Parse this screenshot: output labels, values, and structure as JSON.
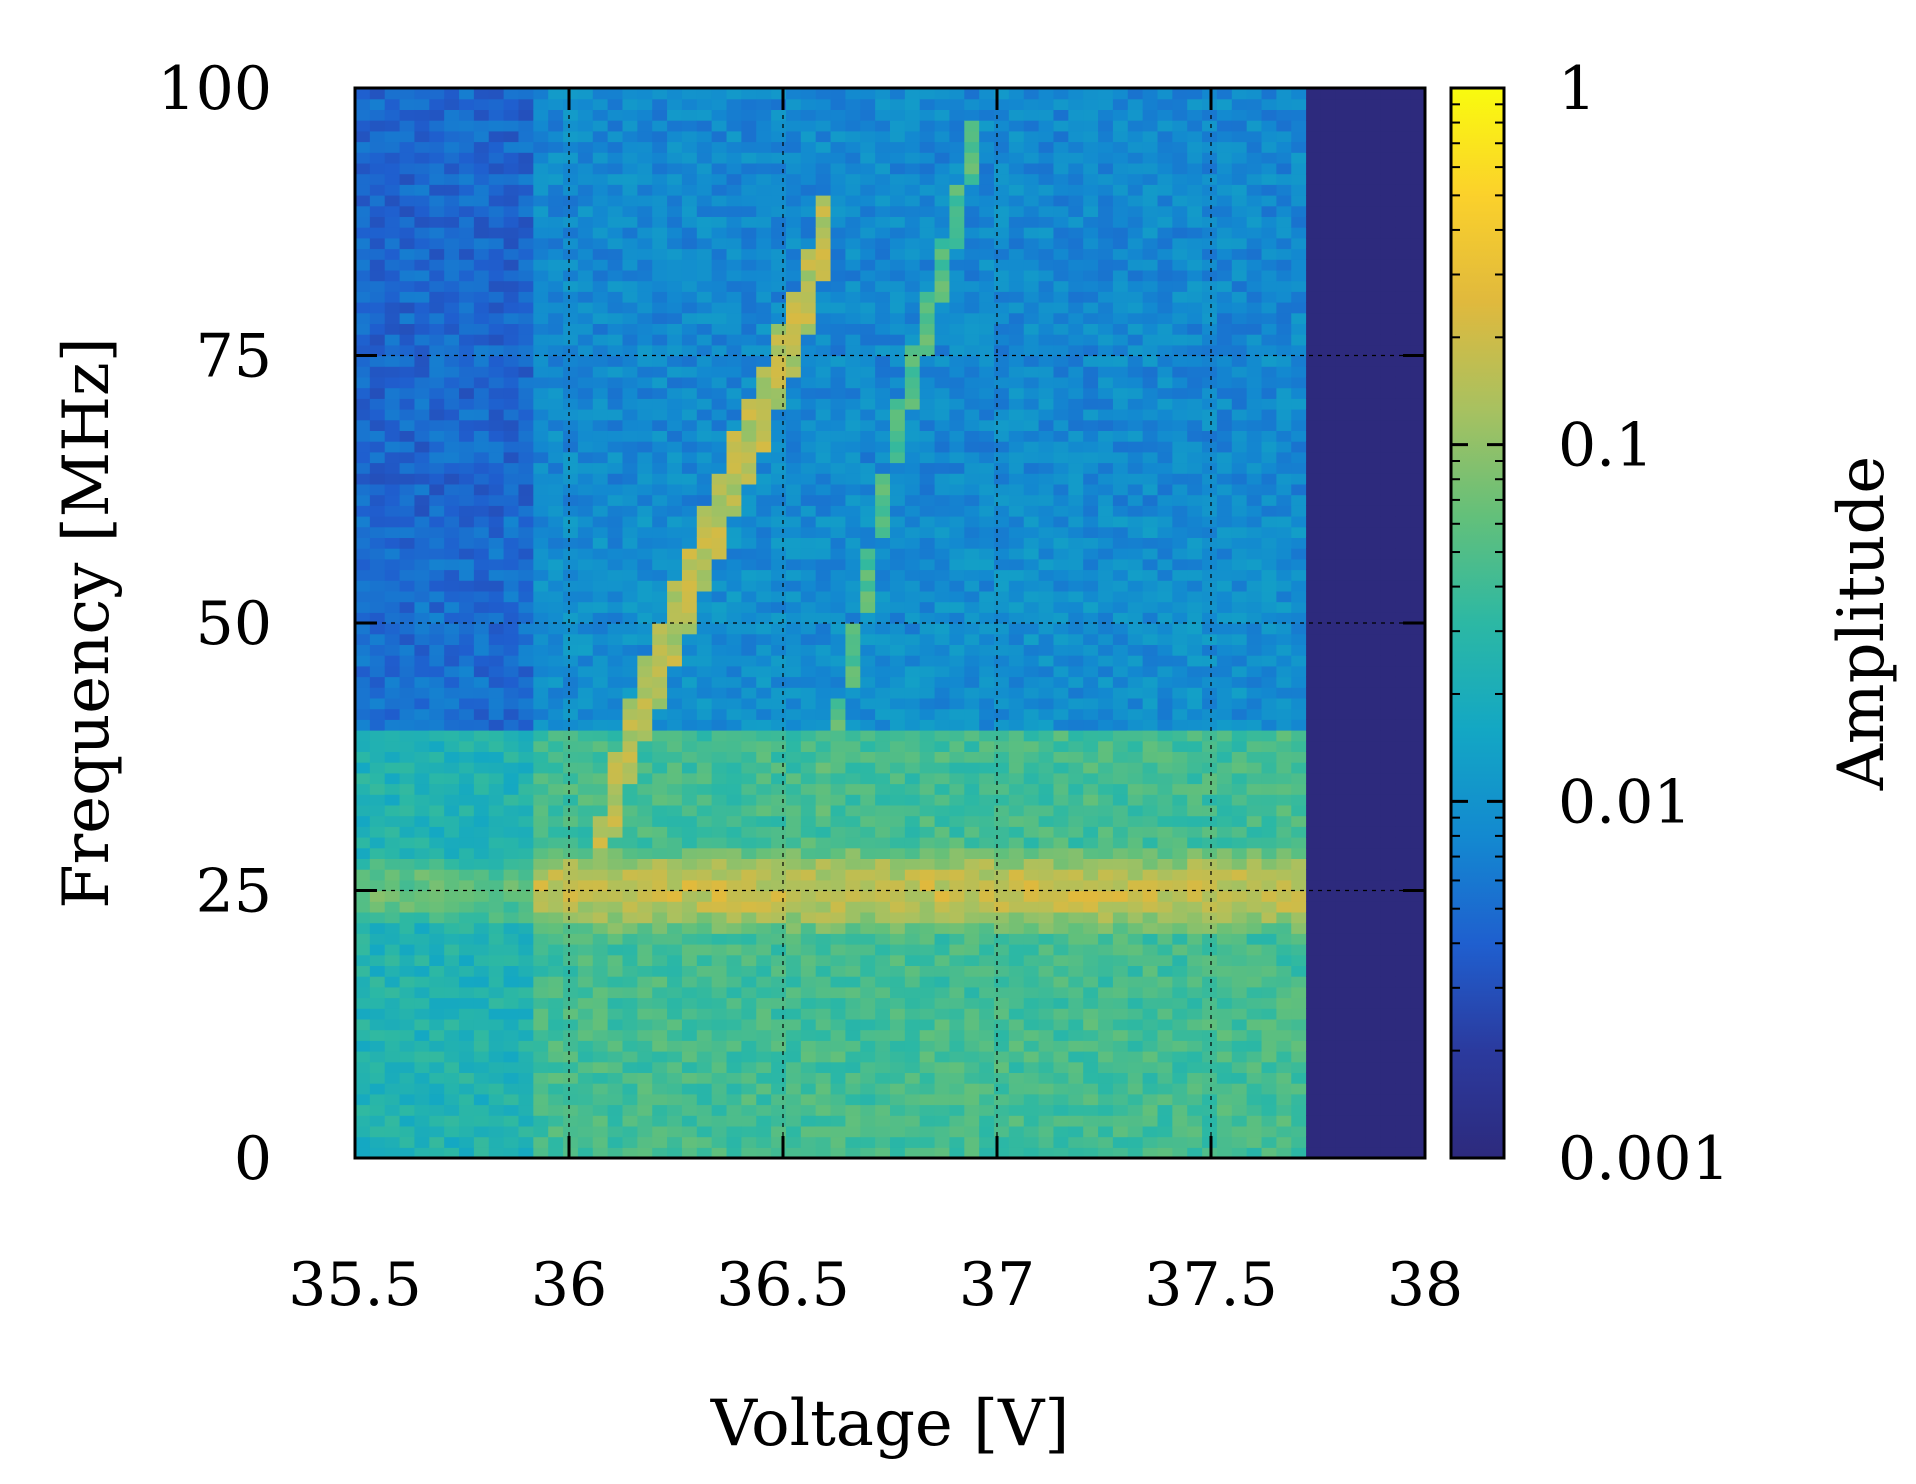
{
  "chart_data": {
    "type": "heatmap",
    "xlabel": "Voltage [V]",
    "ylabel": "Frequency [MHz]",
    "colorbar_label": "Amplitude",
    "xlim": [
      35.5,
      38
    ],
    "ylim": [
      0,
      100
    ],
    "x_ticks": [
      35.5,
      36,
      36.5,
      37,
      37.5,
      38
    ],
    "x_tick_labels": [
      "35.5",
      "36",
      "36.5",
      "37",
      "37.5",
      "38"
    ],
    "y_ticks": [
      0,
      25,
      50,
      75,
      100
    ],
    "y_tick_labels": [
      "0",
      "25",
      "50",
      "75",
      "100"
    ],
    "color_scale": "log",
    "clim": [
      0.001,
      1
    ],
    "colorbar_ticks": [
      0.001,
      0.01,
      0.1,
      1
    ],
    "colorbar_tick_labels": [
      "0.001",
      "0.01",
      "0.1",
      "1"
    ],
    "colormap": [
      "#2d2a7d",
      "#2b3a9e",
      "#1f5fcf",
      "#1389d0",
      "#13a7c4",
      "#2cb8a4",
      "#63c07a",
      "#a8c160",
      "#e0b93d",
      "#fbd12b",
      "#f9fb0e"
    ],
    "grid": true,
    "background_level": 0.005,
    "features": {
      "band_25MHz": {
        "frequency": 25,
        "amplitude": 0.18
      },
      "broadband_low_frequency": {
        "freq_range": [
          0,
          40
        ],
        "amplitude": 0.03
      },
      "onset_voltage": 35.93,
      "cutoff_voltage": 37.72,
      "cutoff_level": 0.001,
      "branch_1": {
        "points": [
          [
            36.05,
            25
          ],
          [
            36.15,
            40
          ],
          [
            36.25,
            50
          ],
          [
            36.35,
            60
          ],
          [
            36.45,
            70
          ],
          [
            36.55,
            80
          ],
          [
            36.62,
            90
          ]
        ],
        "amplitude": 0.15
      },
      "branch_2": {
        "points": [
          [
            36.55,
            25
          ],
          [
            36.6,
            35
          ],
          [
            36.67,
            48
          ],
          [
            36.75,
            65
          ],
          [
            36.85,
            80
          ],
          [
            36.95,
            95
          ]
        ],
        "amplitude": 0.05
      }
    }
  }
}
